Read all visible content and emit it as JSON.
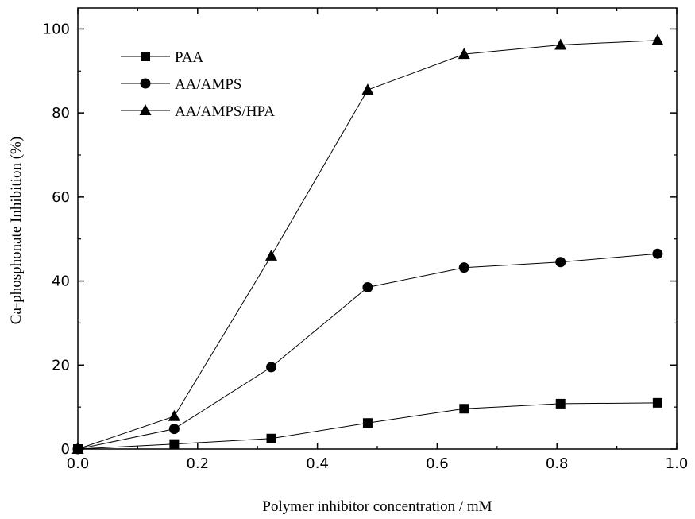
{
  "chart_data": {
    "type": "line",
    "xlabel": "Polymer inhibitor concentration  / mM",
    "ylabel": "Ca-phosphonate Inhibition (%)",
    "xlim": [
      0.0,
      1.0
    ],
    "ylim": [
      0,
      105
    ],
    "x_ticks": [
      "0.0",
      "0.2",
      "0.4",
      "0.6",
      "0.8",
      "1.0"
    ],
    "y_ticks": [
      "0",
      "20",
      "40",
      "60",
      "80",
      "100"
    ],
    "x": [
      0.0,
      0.161,
      0.323,
      0.484,
      0.645,
      0.806,
      0.968
    ],
    "grid": false,
    "legend_position": "top-left",
    "series": [
      {
        "name": "PAA",
        "marker": "square",
        "values": [
          0,
          1.2,
          2.5,
          6.2,
          9.6,
          10.8,
          11.0
        ]
      },
      {
        "name": "AA/AMPS",
        "marker": "circle",
        "values": [
          0,
          4.8,
          19.5,
          38.5,
          43.2,
          44.5,
          46.5
        ]
      },
      {
        "name": "AA/AMPS/HPA",
        "marker": "triangle",
        "values": [
          0,
          7.8,
          46.0,
          85.5,
          94.0,
          96.2,
          97.3
        ]
      }
    ]
  }
}
